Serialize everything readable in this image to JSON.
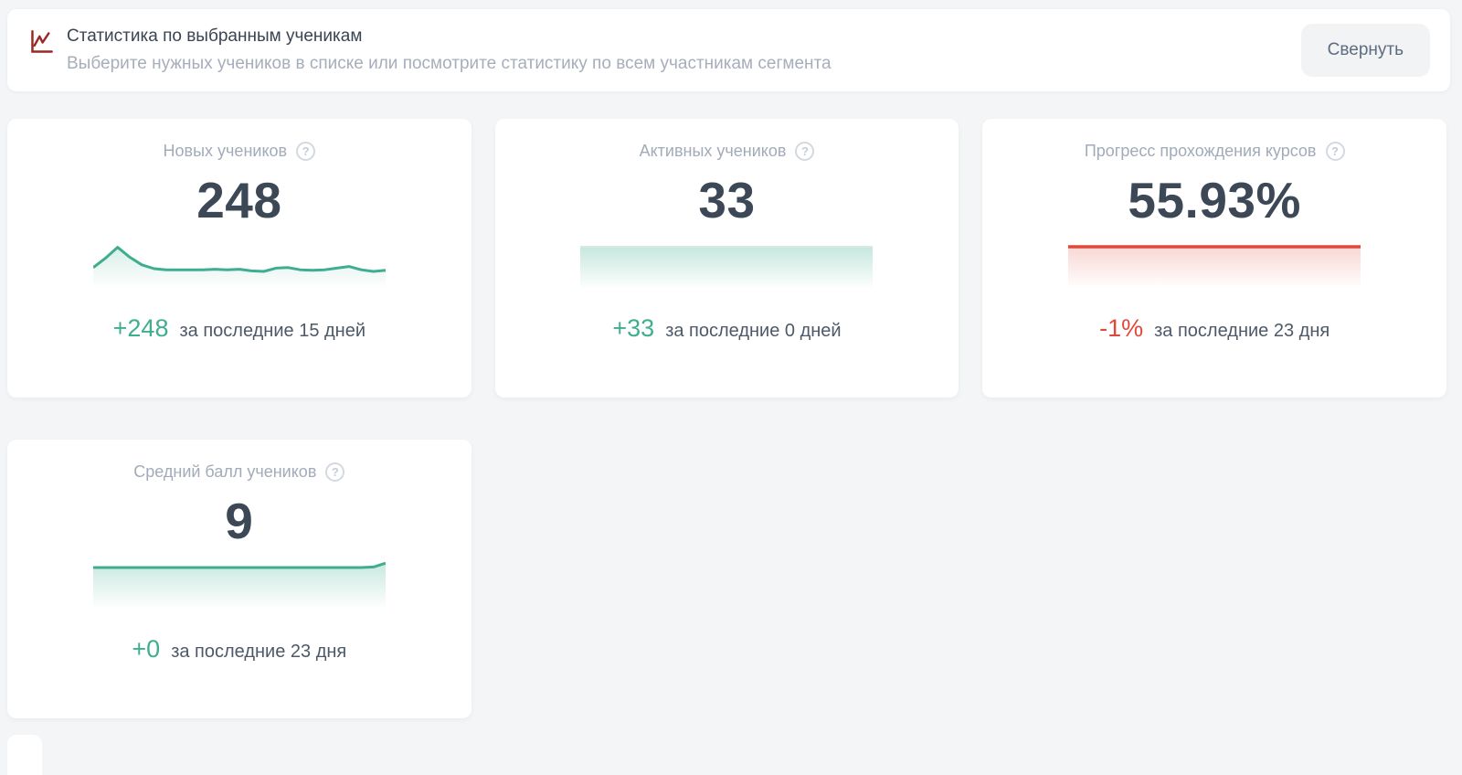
{
  "page": {
    "background": "#f4f5f7"
  },
  "header": {
    "icon": "chart-line-icon",
    "icon_color": "#9b2824",
    "title": "Статистика по выбранным ученикам",
    "subtitle": "Выберите нужных учеников в списке или посмотрите статистику по всем участникам сегмента",
    "collapse_button": "Свернуть"
  },
  "colors": {
    "accent_green": "#3fae8f",
    "accent_red": "#e2483a",
    "value_text": "#3d4857",
    "card_title_text": "#a2abb9",
    "caption_text": "#4d5968"
  },
  "cards": [
    {
      "title": "Новых учеников",
      "help_icon": "?",
      "value": "248",
      "delta": "+248",
      "delta_color": "#3fae8f",
      "caption": "за последние 15 дней",
      "sparkline": {
        "type": "area",
        "line_color": "#3fae8f",
        "fill_color": "#3fae8f",
        "fill_opacity": 0.2,
        "stroke_width": 3,
        "values": [
          47,
          64,
          84,
          66,
          52,
          45,
          43,
          43,
          43,
          43,
          44,
          43,
          44,
          41,
          40,
          46,
          47,
          43,
          42,
          43,
          46,
          49,
          43,
          40,
          42
        ]
      }
    },
    {
      "title": "Активных учеников",
      "help_icon": "?",
      "value": "33",
      "delta": "+33",
      "delta_color": "#3fae8f",
      "caption": "за последние 0 дней",
      "sparkline": {
        "type": "area",
        "line_color": "#d6eae2",
        "fill_color": "#3fae8f",
        "fill_opacity": 0.3,
        "stroke_width": 2,
        "values": [
          85,
          85,
          85,
          85,
          85,
          85,
          85,
          85,
          85,
          85,
          85,
          85,
          85,
          85,
          85,
          85,
          85,
          85,
          85,
          85,
          85,
          85,
          85,
          85,
          85
        ]
      }
    },
    {
      "title": "Прогресс прохождения курсов",
      "help_icon": "?",
      "value": "55.93%",
      "delta": "-1%",
      "delta_color": "#e2483a",
      "caption": "за последние 23 дня",
      "sparkline": {
        "type": "area",
        "line_color": "#e2483a",
        "fill_color": "#e2483a",
        "fill_opacity": 0.22,
        "stroke_width": 3.5,
        "values": [
          85,
          85,
          85,
          85,
          85,
          85,
          85,
          85,
          85,
          85,
          85,
          85,
          85,
          85,
          85,
          85,
          85,
          85,
          85,
          85,
          85,
          85,
          85,
          85,
          85
        ]
      }
    },
    {
      "title": "Средний балл учеников",
      "help_icon": "?",
      "value": "9",
      "delta": "+0",
      "delta_color": "#3fae8f",
      "caption": "за последние 23 дня",
      "sparkline": {
        "type": "area",
        "line_color": "#3fae8f",
        "fill_color": "#3fae8f",
        "fill_opacity": 0.28,
        "stroke_width": 3,
        "values": [
          85,
          85,
          85,
          85,
          85,
          85,
          85,
          85,
          85,
          85,
          85,
          85,
          85,
          85,
          85,
          85,
          85,
          85,
          85,
          85,
          85,
          85,
          85,
          86,
          93
        ]
      }
    }
  ]
}
